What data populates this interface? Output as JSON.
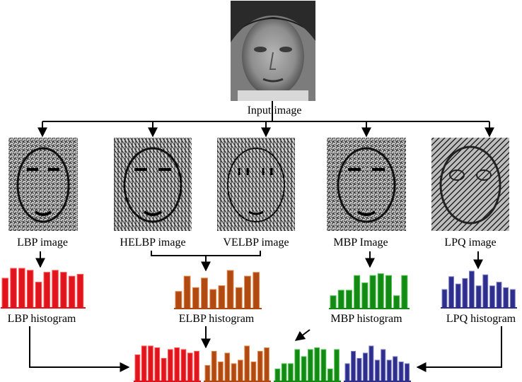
{
  "input": {
    "label": "Input image"
  },
  "branches": [
    {
      "key": "lbp",
      "image_label": "LBP image"
    },
    {
      "key": "helbp",
      "image_label": "HELBP image"
    },
    {
      "key": "velbp",
      "image_label": "VELBP image"
    },
    {
      "key": "mbp",
      "image_label": "MBP Image"
    },
    {
      "key": "lpq",
      "image_label": "LPQ image"
    }
  ],
  "histograms": [
    {
      "key": "lbp",
      "label": "LBP histogram",
      "color": "#e0141c",
      "stroke": "#ff5a5a",
      "values": [
        0.75,
        1.0,
        1.0,
        0.95,
        0.65,
        0.9,
        0.95,
        0.9,
        0.8,
        0.85
      ]
    },
    {
      "key": "elbp",
      "label": "ELBP histogram",
      "color": "#b04a10",
      "stroke": "#e08a55",
      "values": [
        0.45,
        0.85,
        0.55,
        0.8,
        0.5,
        0.6,
        1.0,
        0.55,
        0.85,
        0.95
      ]
    },
    {
      "key": "mbp",
      "label": "MBP histogram",
      "color": "#138a13",
      "stroke": "#52c252",
      "values": [
        0.35,
        0.5,
        0.5,
        0.9,
        0.7,
        0.9,
        0.95,
        0.9,
        0.35,
        0.9
      ]
    },
    {
      "key": "lpq",
      "label": "LPQ histogram",
      "color": "#2e2f8c",
      "stroke": "#8080c8",
      "values": [
        0.5,
        0.85,
        0.65,
        0.8,
        1.0,
        0.6,
        0.9,
        0.6,
        0.7,
        0.55,
        0.5
      ]
    }
  ],
  "concatenated": {
    "segments": [
      "lbp",
      "elbp",
      "mbp",
      "lpq"
    ]
  }
}
